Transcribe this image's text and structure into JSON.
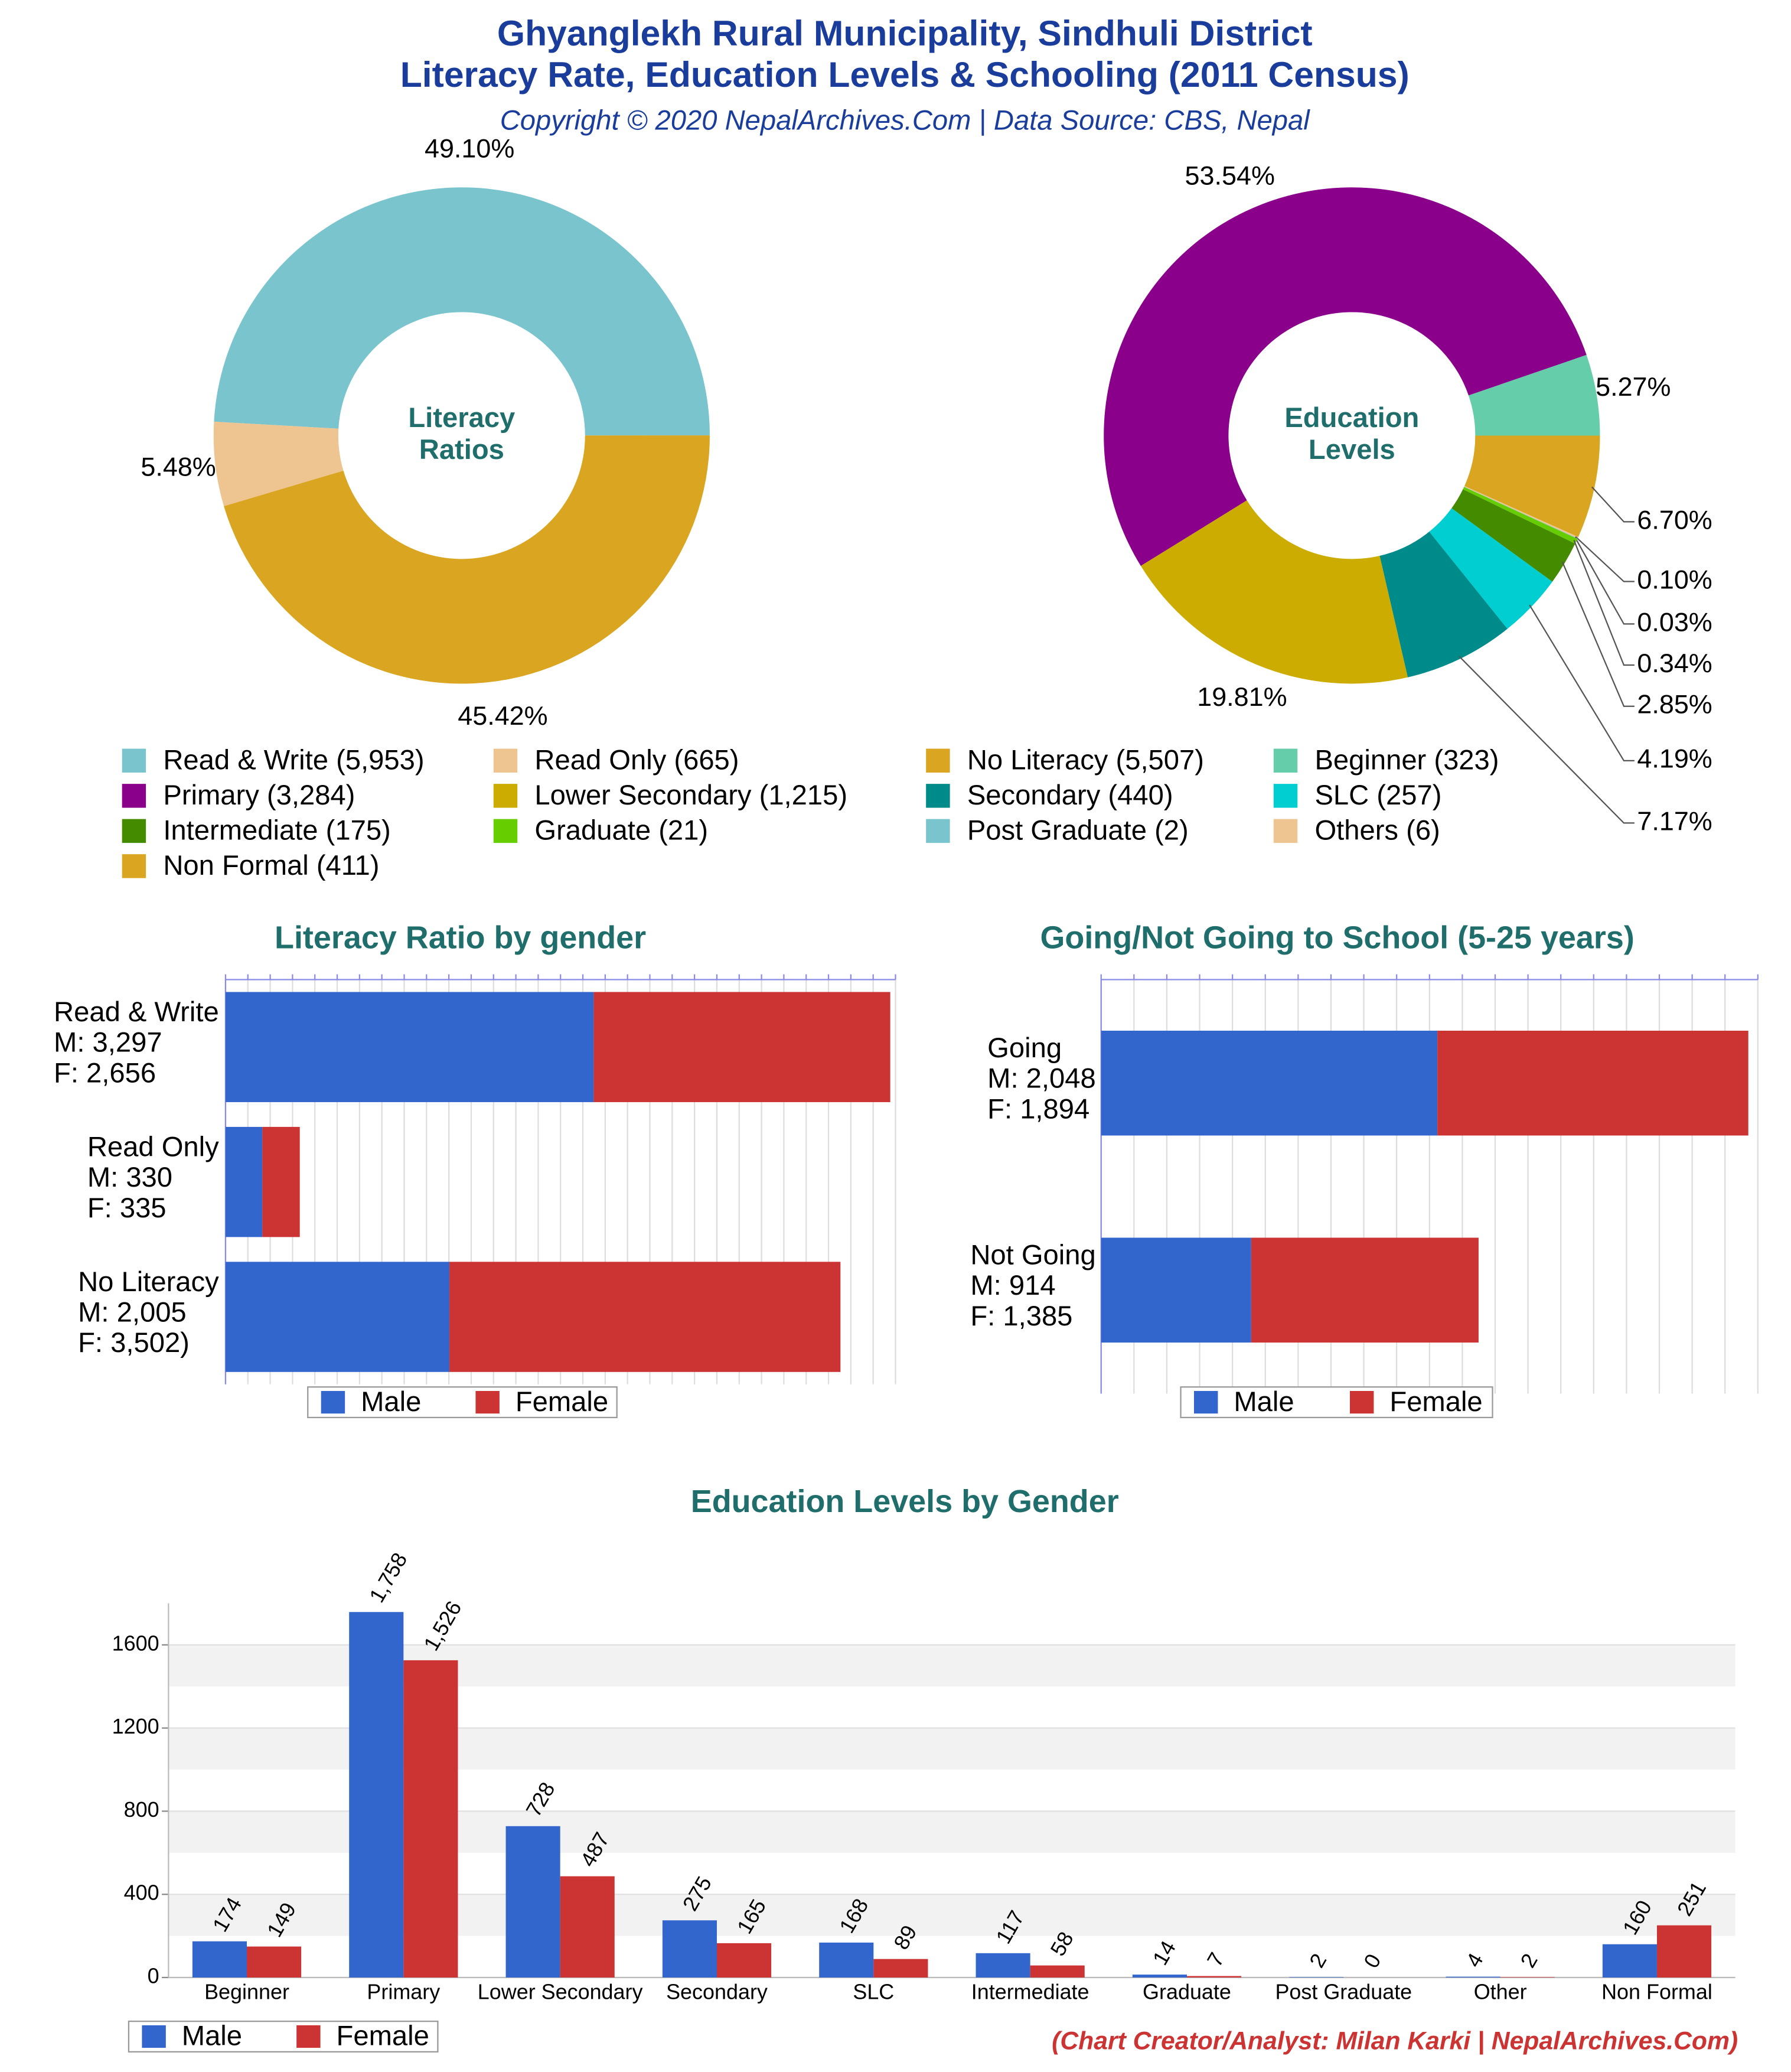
{
  "title": [
    "Ghyanglekh Rural Municipality, Sindhuli District",
    "Literacy Rate, Education Levels & Schooling (2011 Census)"
  ],
  "subtitle": "Copyright © 2020 NepalArchives.Com | Data Source: CBS, Nepal",
  "credit": "(Chart Creator/Analyst: Milan Karki | NepalArchives.Com)",
  "chart_data": [
    {
      "type": "pie",
      "donut": true,
      "center_label": [
        "Literacy",
        "Ratios"
      ],
      "categories": [
        "Read & Write (5,953)",
        "Read Only (665)",
        "No Literacy (5,507)"
      ],
      "values": [
        49.1,
        5.48,
        45.42
      ],
      "value_labels": [
        "49.10%",
        "5.48%",
        "45.42%"
      ],
      "colors": [
        "#7ac5cd",
        "#eec591",
        "#daa520"
      ]
    },
    {
      "type": "pie",
      "donut": true,
      "center_label": [
        "Education",
        "Levels"
      ],
      "categories": [
        "Beginner (323)",
        "Primary (3,284)",
        "Lower Secondary (1,215)",
        "Secondary (440)",
        "SLC (257)",
        "Intermediate (175)",
        "Graduate (21)",
        "Post Graduate (2)",
        "Others (6)",
        "Non Formal (411)"
      ],
      "values": [
        5.27,
        53.54,
        19.81,
        7.17,
        4.19,
        2.85,
        0.34,
        0.03,
        0.1,
        6.7
      ],
      "value_labels": [
        "5.27%",
        "53.54%",
        "19.81%",
        "7.17%",
        "4.19%",
        "2.85%",
        "0.34%",
        "0.03%",
        "0.10%",
        "6.70%"
      ],
      "colors": [
        "#66cdaa",
        "#8b008b",
        "#ccac00",
        "#008b8b",
        "#00ced1",
        "#458b00",
        "#66cd00",
        "#7ac5cd",
        "#eec591",
        "#daa520"
      ]
    },
    {
      "type": "bar",
      "orientation": "horizontal",
      "stacked": true,
      "title": "Literacy Ratio by gender",
      "categories": [
        "Read & Write",
        "Read Only",
        "No Literacy"
      ],
      "series": [
        {
          "name": "Male",
          "color": "#3366cc",
          "values": [
            3297,
            330,
            2005
          ],
          "value_labels": [
            "M: 3,297",
            "M: 330",
            "M: 2,005"
          ]
        },
        {
          "name": "Female",
          "color": "#cc3333",
          "values": [
            2656,
            335,
            3502
          ],
          "value_labels": [
            "F: 2,656",
            "F: 335",
            "F: 3,502)"
          ]
        }
      ],
      "xlim": [
        0,
        6000
      ],
      "xticks": [
        0,
        200,
        400,
        600,
        800,
        1000,
        1200,
        1400,
        1600,
        1800,
        2000,
        2200,
        2400,
        2600,
        2800,
        3000,
        3200,
        3400,
        3600,
        3800,
        4000,
        4200,
        4400,
        4600,
        4800,
        5000,
        5200,
        5400,
        5600,
        5800,
        6000
      ],
      "grid": true
    },
    {
      "type": "bar",
      "orientation": "horizontal",
      "stacked": true,
      "title": "Going/Not Going to School (5-25 years)",
      "categories": [
        "Going",
        "Not Going"
      ],
      "series": [
        {
          "name": "Male",
          "color": "#3366cc",
          "values": [
            2048,
            914
          ],
          "value_labels": [
            "M: 2,048",
            "M: 914"
          ]
        },
        {
          "name": "Female",
          "color": "#cc3333",
          "values": [
            1894,
            1385
          ],
          "value_labels": [
            "F: 1,894",
            "F: 1,385"
          ]
        }
      ],
      "xlim": [
        0,
        4000
      ],
      "xticks": [
        0,
        200,
        400,
        600,
        800,
        1000,
        1200,
        1400,
        1600,
        1800,
        2000,
        2200,
        2400,
        2600,
        2800,
        3000,
        3200,
        3400,
        3600,
        3800,
        4000
      ],
      "grid": true
    },
    {
      "type": "bar",
      "orientation": "vertical",
      "title": "Education Levels by Gender",
      "categories": [
        "Beginner",
        "Primary",
        "Lower Secondary",
        "Secondary",
        "SLC",
        "Intermediate",
        "Graduate",
        "Post Graduate",
        "Other",
        "Non Formal"
      ],
      "series": [
        {
          "name": "Male",
          "color": "#3366cc",
          "values": [
            174,
            1758,
            728,
            275,
            168,
            117,
            14,
            2,
            4,
            160
          ],
          "value_labels": [
            "174",
            "1,758",
            "728",
            "275",
            "168",
            "117",
            "14",
            "2",
            "4",
            "160"
          ]
        },
        {
          "name": "Female",
          "color": "#cc3333",
          "values": [
            149,
            1526,
            487,
            165,
            89,
            58,
            7,
            0,
            2,
            251
          ],
          "value_labels": [
            "149",
            "1,526",
            "487",
            "165",
            "89",
            "58",
            "7",
            "0",
            "2",
            "251"
          ]
        }
      ],
      "ylim": [
        0,
        1800
      ],
      "yticks": [
        0,
        400,
        800,
        1200,
        1600
      ],
      "grid": true
    }
  ]
}
